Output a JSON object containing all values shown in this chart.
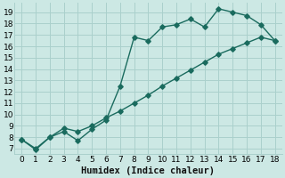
{
  "xlabel": "Humidex (Indice chaleur)",
  "bg_color": "#cce8e4",
  "grid_color": "#aad0cc",
  "line_color": "#1a6b5e",
  "xlim": [
    -0.5,
    18.5
  ],
  "ylim": [
    6.5,
    19.8
  ],
  "xticks": [
    0,
    1,
    2,
    3,
    4,
    5,
    6,
    7,
    8,
    9,
    10,
    11,
    12,
    13,
    14,
    15,
    16,
    17,
    18
  ],
  "yticks": [
    7,
    8,
    9,
    10,
    11,
    12,
    13,
    14,
    15,
    16,
    17,
    18,
    19
  ],
  "line1_x": [
    0,
    1,
    2,
    3,
    4,
    5,
    6,
    7,
    8,
    9,
    10,
    11,
    12,
    13,
    14,
    15,
    16,
    17,
    18
  ],
  "line1_y": [
    7.8,
    6.9,
    8.0,
    8.5,
    7.7,
    8.7,
    9.5,
    12.5,
    16.8,
    16.5,
    17.7,
    17.9,
    18.4,
    17.7,
    19.3,
    19.0,
    18.7,
    17.9,
    16.5
  ],
  "line2_x": [
    0,
    1,
    2,
    3,
    4,
    5,
    6,
    7,
    8,
    9,
    10,
    11,
    12,
    13,
    14,
    15,
    16,
    17,
    18
  ],
  "line2_y": [
    7.8,
    7.0,
    8.0,
    8.8,
    8.5,
    9.0,
    9.7,
    10.3,
    11.0,
    11.7,
    12.5,
    13.2,
    13.9,
    14.6,
    15.3,
    15.8,
    16.3,
    16.8,
    16.5
  ],
  "markersize": 2.8,
  "linewidth": 1.0,
  "xlabel_fontsize": 7.5,
  "tick_fontsize": 6.5
}
